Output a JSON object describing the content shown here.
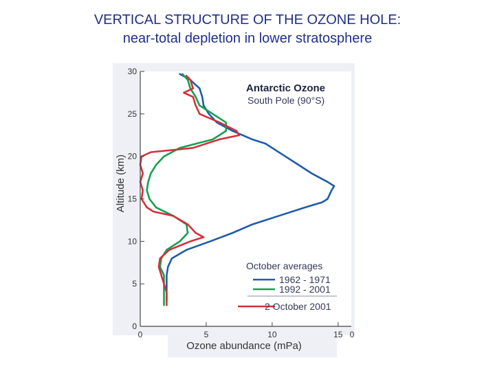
{
  "slide": {
    "title_line1": "VERTICAL STRUCTURE OF THE OZONE HOLE:",
    "title_line2": "near-total depletion in lower stratosphere"
  },
  "chart_data": {
    "type": "line",
    "title": "Antarctic Ozone",
    "subtitle": "South Pole (90°S)",
    "xlabel": "Ozone abundance (mPa)",
    "ylabel": "Altitude (km)",
    "xlim": [
      0,
      16
    ],
    "ylim": [
      0,
      30
    ],
    "xticks": [
      0,
      5,
      10,
      15
    ],
    "yticks": [
      0,
      5,
      10,
      15,
      20,
      25,
      30
    ],
    "grid": false,
    "legend_title": "October averages",
    "legend_position": "bottom-right",
    "series": [
      {
        "name": "1962 - 1971",
        "color": "#1e5aa8",
        "points": [
          [
            2.0,
            3.0
          ],
          [
            2.0,
            4.5
          ],
          [
            2.0,
            6.0
          ],
          [
            2.1,
            7.0
          ],
          [
            2.4,
            8.0
          ],
          [
            3.5,
            9.0
          ],
          [
            5.3,
            10.0
          ],
          [
            7.0,
            11.0
          ],
          [
            8.5,
            12.0
          ],
          [
            10.5,
            13.0
          ],
          [
            12.5,
            14.0
          ],
          [
            13.8,
            14.6
          ],
          [
            14.2,
            15.0
          ],
          [
            14.5,
            16.0
          ],
          [
            14.7,
            16.5
          ],
          [
            14.2,
            17.0
          ],
          [
            13.0,
            18.0
          ],
          [
            12.0,
            19.0
          ],
          [
            11.0,
            20.0
          ],
          [
            10.0,
            21.0
          ],
          [
            9.5,
            21.5
          ],
          [
            8.5,
            22.0
          ],
          [
            7.0,
            23.0
          ],
          [
            5.8,
            24.0
          ],
          [
            5.2,
            25.0
          ],
          [
            4.8,
            26.0
          ],
          [
            4.7,
            27.0
          ],
          [
            4.5,
            28.0
          ],
          [
            3.8,
            29.0
          ],
          [
            3.0,
            29.7
          ]
        ]
      },
      {
        "name": "1992 - 2001",
        "color": "#12a050",
        "points": [
          [
            1.8,
            2.5
          ],
          [
            1.8,
            4.0
          ],
          [
            1.8,
            6.0
          ],
          [
            1.5,
            7.0
          ],
          [
            1.6,
            8.0
          ],
          [
            2.0,
            9.0
          ],
          [
            3.0,
            10.0
          ],
          [
            3.6,
            11.0
          ],
          [
            3.5,
            12.0
          ],
          [
            2.5,
            13.0
          ],
          [
            1.2,
            14.0
          ],
          [
            0.7,
            15.0
          ],
          [
            0.5,
            16.0
          ],
          [
            0.6,
            17.0
          ],
          [
            0.8,
            18.0
          ],
          [
            1.2,
            19.0
          ],
          [
            1.8,
            20.0
          ],
          [
            3.0,
            21.0
          ],
          [
            5.5,
            22.0
          ],
          [
            6.5,
            23.0
          ],
          [
            6.5,
            24.0
          ],
          [
            5.5,
            25.0
          ],
          [
            4.5,
            26.0
          ],
          [
            4.2,
            27.0
          ],
          [
            3.8,
            28.0
          ],
          [
            3.6,
            29.0
          ],
          [
            3.2,
            29.7
          ]
        ]
      },
      {
        "name": "2 October 2001",
        "color": "#d4303a",
        "points": [
          [
            2.0,
            2.5
          ],
          [
            2.0,
            4.0
          ],
          [
            1.8,
            5.0
          ],
          [
            1.6,
            6.0
          ],
          [
            1.4,
            7.0
          ],
          [
            1.5,
            8.0
          ],
          [
            2.2,
            9.0
          ],
          [
            3.8,
            10.0
          ],
          [
            4.8,
            10.5
          ],
          [
            4.2,
            11.0
          ],
          [
            3.6,
            12.0
          ],
          [
            2.5,
            13.0
          ],
          [
            1.0,
            13.5
          ],
          [
            0.5,
            14.0
          ],
          [
            0.1,
            15.0
          ],
          [
            0.2,
            16.0
          ],
          [
            0.0,
            17.0
          ],
          [
            0.2,
            18.0
          ],
          [
            0.0,
            19.0
          ],
          [
            0.1,
            20.0
          ],
          [
            0.8,
            20.5
          ],
          [
            4.0,
            21.0
          ],
          [
            6.0,
            22.0
          ],
          [
            7.5,
            22.5
          ],
          [
            7.3,
            23.0
          ],
          [
            6.0,
            24.0
          ],
          [
            4.5,
            25.0
          ],
          [
            4.2,
            26.0
          ],
          [
            4.0,
            27.0
          ],
          [
            3.3,
            27.5
          ],
          [
            4.0,
            28.0
          ],
          [
            3.8,
            29.0
          ],
          [
            3.5,
            29.5
          ]
        ]
      }
    ]
  }
}
